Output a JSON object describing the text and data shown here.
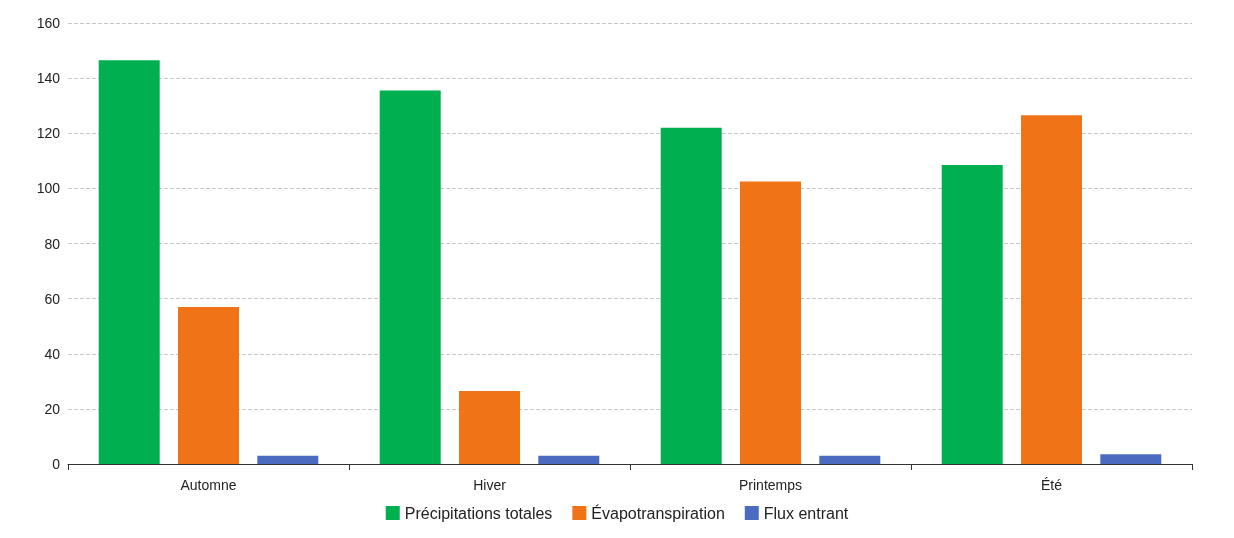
{
  "chart_data": {
    "type": "bar",
    "categories": [
      "Automne",
      "Hiver",
      "Printemps",
      "Été"
    ],
    "series": [
      {
        "name": "Précipitations totales",
        "color": "#00b050",
        "values": [
          146.5,
          135.5,
          122,
          108.5
        ]
      },
      {
        "name": "Évapotranspiration",
        "color": "#f07318",
        "values": [
          57,
          26.5,
          102.5,
          126.5
        ]
      },
      {
        "name": "Flux entrant",
        "color": "#4a6bbf",
        "values": [
          3,
          3,
          3,
          3.5
        ]
      }
    ],
    "ylim": [
      0,
      160
    ],
    "yticks": [
      0,
      20,
      40,
      60,
      80,
      100,
      120,
      140,
      160
    ],
    "grid": "y",
    "legend": "bottom"
  }
}
